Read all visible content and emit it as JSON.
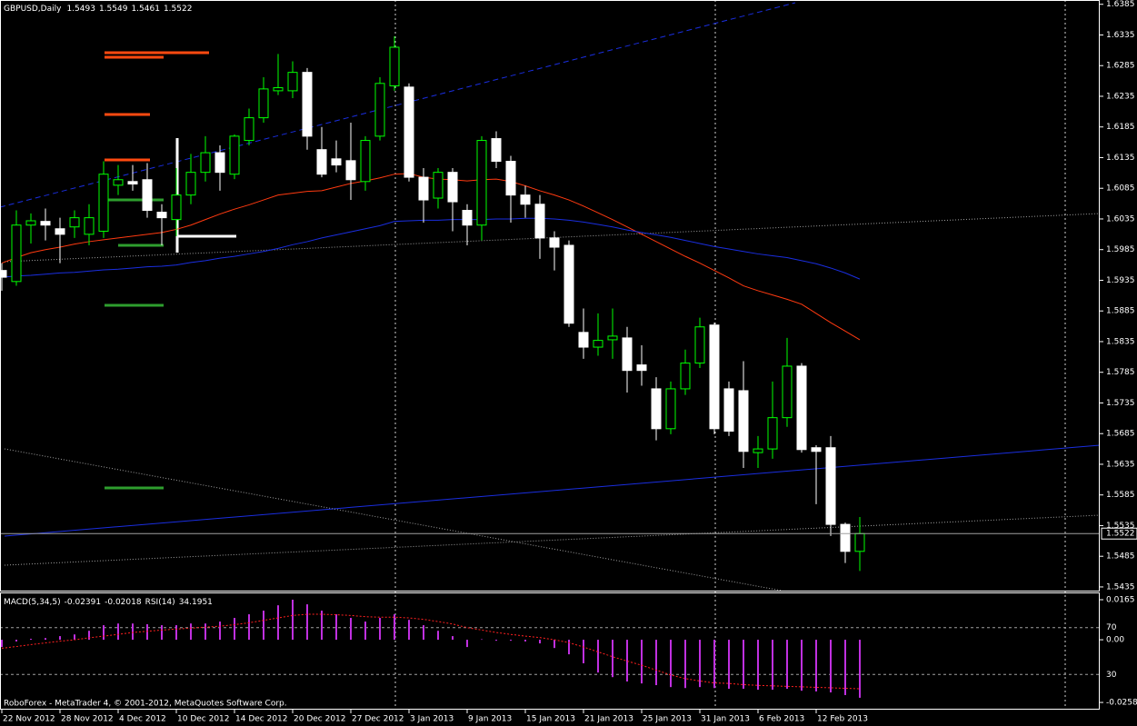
{
  "chart_data": [
    {
      "type": "candlestick",
      "title": "GBPUSD,Daily",
      "categories": [
        "22 Nov 2012",
        null,
        null,
        null,
        "28 Nov 2012",
        null,
        null,
        null,
        "4 Dec 2012",
        null,
        null,
        null,
        "10 Dec 2012",
        null,
        null,
        null,
        "14 Dec 2012",
        null,
        null,
        null,
        "20 Dec 2012",
        null,
        null,
        null,
        "27 Dec 2012",
        null,
        null,
        null,
        "3 Jan 2013",
        null,
        null,
        null,
        "9 Jan 2013",
        null,
        null,
        null,
        "15 Jan 2013",
        null,
        null,
        null,
        "21 Jan 2013",
        null,
        null,
        null,
        "25 Jan 2013",
        null,
        null,
        null,
        "31 Jan 2013",
        null,
        null,
        null,
        "6 Feb 2013",
        null,
        null,
        null,
        "12 Feb 2013",
        null,
        null,
        null
      ],
      "open": [
        1.5951,
        1.5933,
        1.6025,
        1.6031,
        1.6019,
        1.6022,
        1.601,
        1.6015,
        1.609,
        1.6096,
        1.6099,
        1.6046,
        1.6034,
        1.6074,
        1.6111,
        1.6143,
        1.6108,
        1.6163,
        1.62,
        1.6244,
        1.6244,
        1.6274,
        1.6148,
        1.6133,
        1.613,
        1.6096,
        1.617,
        1.6252,
        1.625,
        1.6103,
        1.6069,
        1.6111,
        1.6049,
        1.6025,
        1.6166,
        1.6129,
        1.6074,
        1.6059,
        1.6004,
        1.5992,
        1.585,
        1.5826,
        1.5838,
        1.5841,
        1.5797,
        1.5758,
        1.5693,
        1.5758,
        1.58,
        1.5862,
        1.5758,
        1.5755,
        1.5654,
        1.566,
        1.5711,
        1.5795,
        1.5662,
        1.5662,
        1.5537,
        1.5493
      ],
      "high": [
        1.5963,
        1.6049,
        1.6044,
        1.6052,
        1.6037,
        1.6049,
        1.6059,
        1.6129,
        1.6123,
        1.6123,
        1.6126,
        1.6059,
        1.6118,
        1.6141,
        1.617,
        1.6155,
        1.6173,
        1.6215,
        1.6266,
        1.6304,
        1.6292,
        1.6281,
        1.6185,
        1.6163,
        1.6192,
        1.617,
        1.6266,
        1.6333,
        1.6256,
        1.6118,
        1.6118,
        1.6118,
        1.6059,
        1.617,
        1.6178,
        1.6138,
        1.6089,
        1.6074,
        1.6015,
        1.6,
        1.5889,
        1.5881,
        1.5889,
        1.5859,
        1.5829,
        1.5777,
        1.577,
        1.5822,
        1.5874,
        1.5866,
        1.577,
        1.5803,
        1.5681,
        1.577,
        1.5841,
        1.58,
        1.5666,
        1.5681,
        1.554,
        1.5549
      ],
      "low": [
        1.5918,
        1.5926,
        1.5995,
        1.6,
        1.5963,
        1.6004,
        1.5992,
        1.6004,
        1.6074,
        1.6081,
        1.6037,
        1.5992,
        1.6007,
        1.6059,
        1.6096,
        1.6081,
        1.61,
        1.6155,
        1.6192,
        1.6237,
        1.6232,
        1.6148,
        1.6103,
        1.6111,
        1.6066,
        1.6081,
        1.6163,
        1.6244,
        1.6096,
        1.6029,
        1.6052,
        1.6015,
        1.5992,
        1.6,
        1.6118,
        1.6029,
        1.6037,
        1.597,
        1.5951,
        1.5859,
        1.5807,
        1.5812,
        1.5807,
        1.5752,
        1.5763,
        1.5674,
        1.5684,
        1.5748,
        1.5792,
        1.5684,
        1.5681,
        1.5629,
        1.5629,
        1.5644,
        1.5696,
        1.5654,
        1.557,
        1.5518,
        1.5474,
        1.5461
      ],
      "close": [
        1.594,
        1.6025,
        1.6032,
        1.6025,
        1.601,
        1.6037,
        1.6037,
        1.6108,
        1.6099,
        1.6092,
        1.6049,
        1.6037,
        1.6074,
        1.6111,
        1.6143,
        1.6111,
        1.617,
        1.62,
        1.6247,
        1.6249,
        1.6274,
        1.617,
        1.6108,
        1.6123,
        1.6099,
        1.6163,
        1.6256,
        1.6315,
        1.6103,
        1.6066,
        1.6111,
        1.6063,
        1.6025,
        1.6163,
        1.6129,
        1.6074,
        1.6059,
        1.6004,
        1.5989,
        1.5865,
        1.5826,
        1.5837,
        1.5844,
        1.5788,
        1.5788,
        1.5693,
        1.5758,
        1.58,
        1.5859,
        1.5693,
        1.5689,
        1.5656,
        1.566,
        1.5711,
        1.5795,
        1.5659,
        1.5656,
        1.5537,
        1.5493,
        1.5522
      ],
      "up_color": "#00ff00",
      "down_color": "#ffffff",
      "overlays": [
        {
          "color": "#ff3a10",
          "values": [
            1.5963,
            1.5972,
            1.598,
            1.5985,
            1.5989,
            1.5994,
            1.5998,
            1.6001,
            1.6004,
            1.6007,
            1.601,
            1.6013,
            1.6018,
            1.6025,
            1.6034,
            1.6043,
            1.6051,
            1.6058,
            1.6066,
            1.6074,
            1.6077,
            1.608,
            1.6081,
            1.6087,
            1.6093,
            1.6097,
            1.6102,
            1.6108,
            1.6109,
            1.6103,
            1.61,
            1.6099,
            1.6097,
            1.6099,
            1.61,
            1.6096,
            1.6089,
            1.6081,
            1.6074,
            1.6066,
            1.6056,
            1.6045,
            1.6034,
            1.6022,
            1.601,
            1.5998,
            1.5986,
            1.5974,
            1.5963,
            1.5951,
            1.5939,
            1.5926,
            1.5918,
            1.5911,
            1.5904,
            1.5896,
            1.5881,
            1.5866,
            1.5852,
            1.5838
          ]
        },
        {
          "color": "#1a2ee0",
          "values": [
            1.594,
            1.5942,
            1.5943,
            1.5945,
            1.5947,
            1.5948,
            1.595,
            1.5952,
            1.5953,
            1.5955,
            1.5957,
            1.5958,
            1.596,
            1.5964,
            1.5967,
            1.5971,
            1.5974,
            1.5978,
            1.5982,
            1.5987,
            1.5993,
            1.5998,
            1.6004,
            1.6009,
            1.6014,
            1.6019,
            1.6024,
            1.6031,
            1.6032,
            1.6033,
            1.6033,
            1.6034,
            1.6034,
            1.6034,
            1.6035,
            1.6035,
            1.6036,
            1.6036,
            1.6035,
            1.6033,
            1.603,
            1.6026,
            1.6022,
            1.6017,
            1.6013,
            1.6009,
            1.6005,
            1.6,
            1.5995,
            1.599,
            1.5986,
            1.5982,
            1.5978,
            1.5975,
            1.5972,
            1.5967,
            1.5962,
            1.5955,
            1.5947,
            1.5937
          ]
        }
      ],
      "ylim": [
        1.5429,
        1.6392
      ],
      "yticks": [
        1.6385,
        1.6335,
        1.6285,
        1.6235,
        1.6185,
        1.6135,
        1.6085,
        1.6035,
        1.5985,
        1.5935,
        1.5885,
        1.5835,
        1.5785,
        1.5735,
        1.5685,
        1.5635,
        1.5585,
        1.5535,
        1.5485,
        1.5435
      ]
    },
    {
      "type": "macd",
      "title": "MACD(5,34,5)",
      "rsi_title": "RSI(14)",
      "rsi_value": 34.1951,
      "histogram_color": "#c030e0",
      "signal_color": "#ff2020",
      "histogram": [
        -0.003,
        -0.0007,
        0.0004,
        0.0007,
        0.0015,
        0.0022,
        0.0037,
        0.006,
        0.0067,
        0.0067,
        0.0064,
        0.006,
        0.006,
        0.0067,
        0.0067,
        0.0075,
        0.009,
        0.0105,
        0.012,
        0.0142,
        0.0165,
        0.0146,
        0.012,
        0.0105,
        0.009,
        0.0075,
        0.009,
        0.0105,
        0.0082,
        0.006,
        0.0037,
        0.0015,
        -0.003,
        0.0002,
        -0.0004,
        -0.0004,
        -0.0007,
        -0.0015,
        -0.0034,
        -0.006,
        -0.0097,
        -0.0135,
        -0.0154,
        -0.0172,
        -0.018,
        -0.0187,
        -0.0195,
        -0.0199,
        -0.0195,
        -0.0199,
        -0.0202,
        -0.0202,
        -0.0206,
        -0.0206,
        -0.0202,
        -0.021,
        -0.0213,
        -0.0217,
        -0.0228,
        -0.02391
      ],
      "signal": [
        -0.0035,
        -0.0028,
        -0.002,
        -0.0013,
        -0.0006,
        0.0,
        0.0008,
        0.0015,
        0.0022,
        0.003,
        0.0035,
        0.004,
        0.0044,
        0.0048,
        0.0052,
        0.0056,
        0.0062,
        0.007,
        0.008,
        0.009,
        0.01,
        0.0105,
        0.0105,
        0.0103,
        0.01,
        0.0095,
        0.0093,
        0.0093,
        0.009,
        0.0084,
        0.0075,
        0.0065,
        0.005,
        0.004,
        0.003,
        0.0022,
        0.0015,
        0.0009,
        0.0,
        -0.0012,
        -0.003,
        -0.005,
        -0.007,
        -0.0088,
        -0.0105,
        -0.0125,
        -0.0145,
        -0.016,
        -0.017,
        -0.0178,
        -0.018,
        -0.0185,
        -0.0188,
        -0.019,
        -0.0192,
        -0.0194,
        -0.0196,
        -0.0198,
        -0.02,
        -0.02018
      ],
      "ylim": [
        -0.0288,
        0.0195
      ],
      "yticks": [
        0.0165,
        {
          "value": 0,
          "label": "0.00"
        },
        -0.02583
      ],
      "y2lim": [
        0,
        100
      ],
      "y2ticks": [
        70,
        30
      ]
    }
  ],
  "footer": "RoboForex - MetaTrader 4, © 2001-2012, MetaQuotes Software Corp."
}
